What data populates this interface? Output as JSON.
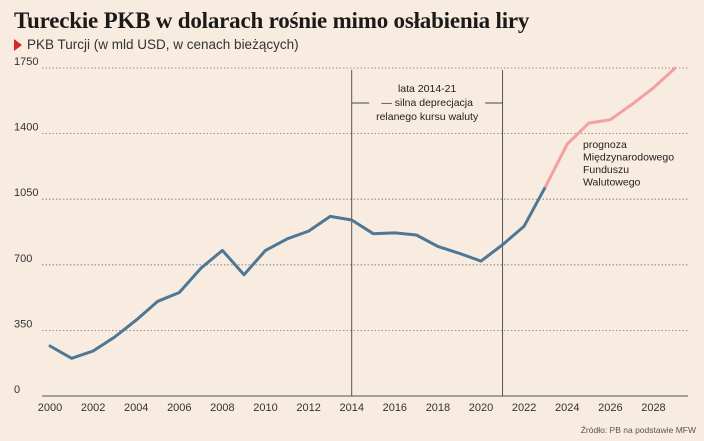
{
  "header": {
    "title": "Tureckie PKB w dolarach rośnie mimo osłabienia liry",
    "subtitle": "PKB Turcji (w mld USD, w cenach bieżących)"
  },
  "source": "Źródło: PB na podstawie MFW",
  "colors": {
    "background": "#f8ebdf",
    "actual_line": "#4e7796",
    "forecast_line": "#f2a0a0",
    "marker": "#d9262b"
  },
  "chart_data": {
    "type": "line",
    "title": "Tureckie PKB w dolarach rośnie mimo osłabienia liry",
    "subtitle": "PKB Turcji (w mld USD, w cenach bieżących)",
    "xlim": [
      1999.9,
      2029.3
    ],
    "ylim": [
      0,
      1750
    ],
    "x_ticks": [
      2000,
      2002,
      2004,
      2006,
      2008,
      2010,
      2012,
      2014,
      2016,
      2018,
      2020,
      2022,
      2024,
      2026,
      2028
    ],
    "y_ticks": [
      0,
      350,
      700,
      1050,
      1400,
      1750
    ],
    "grid": true,
    "series": [
      {
        "style": "actual",
        "x": [
          2000,
          2001,
          2002,
          2003,
          2004,
          2005,
          2006,
          2007,
          2008,
          2009,
          2010,
          2011,
          2012,
          2013,
          2014,
          2015,
          2016,
          2017,
          2018,
          2019,
          2020,
          2021,
          2022,
          2023
        ],
        "y": [
          267,
          201,
          240,
          315,
          405,
          505,
          552,
          682,
          777,
          647,
          777,
          838,
          880,
          958,
          939,
          866,
          870,
          859,
          798,
          761,
          720,
          807,
          906,
          1119
        ]
      },
      {
        "style": "forecast",
        "x": [
          2023,
          2024,
          2025,
          2026,
          2027,
          2028,
          2029
        ],
        "y": [
          1119,
          1344,
          1456,
          1474,
          1556,
          1644,
          1749
        ]
      }
    ],
    "period_lines": [
      2014,
      2021
    ],
    "annotations": {
      "period": [
        "lata 2014-21",
        "— silna deprecjacja",
        "relanego kursu waluty"
      ],
      "forecast": [
        "prognoza",
        "Międzynarodowego",
        "Funduszu",
        "Walutowego"
      ]
    }
  }
}
